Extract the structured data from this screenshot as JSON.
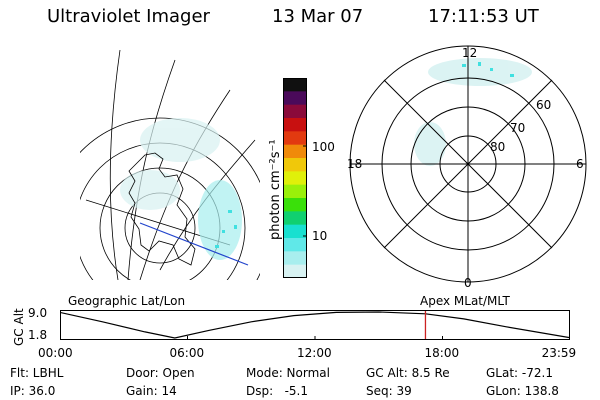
{
  "header": {
    "instrument": "Ultraviolet Imager",
    "date": "13 Mar 07",
    "time": "17:11:53 UT"
  },
  "colorbar": {
    "unit_label": "photon cm⁻²s⁻¹",
    "ticks": [
      "100",
      "10"
    ],
    "colors": [
      "#101010",
      "#4a0a5a",
      "#8a0a3a",
      "#c81010",
      "#e23a10",
      "#f08a0a",
      "#f0c80a",
      "#e0f00a",
      "#9af00a",
      "#3ae00a",
      "#10d070",
      "#18e0d0",
      "#60e8e8",
      "#a8eeee",
      "#d8f2f2"
    ]
  },
  "left_map": {
    "title": "Geographic Lat/Lon"
  },
  "right_map": {
    "title": "Apex MLat/MLT",
    "mlt_labels": {
      "top": "12",
      "left": "18",
      "right": "6",
      "bottom": "0"
    },
    "lat_labels": [
      "60",
      "70",
      "80"
    ]
  },
  "timeline": {
    "ylabel": "GC Alt",
    "yticks": [
      "9.0",
      "1.8"
    ],
    "xticks": [
      "00:00",
      "06:00",
      "12:00",
      "18:00",
      "23:59"
    ],
    "marker_color": "#cc2222"
  },
  "chart_data": {
    "type": "line",
    "title": "",
    "xlabel": "",
    "ylabel": "GC Alt",
    "x_ticks": [
      "00:00",
      "06:00",
      "12:00",
      "18:00",
      "23:59"
    ],
    "ylim": [
      1.8,
      9.0
    ],
    "series": [
      {
        "values_hours": [
          0,
          2,
          4,
          5.4,
          7,
          9,
          11,
          13,
          15,
          17.2,
          19,
          21,
          23.98
        ],
        "values_alt": [
          8.9,
          6.3,
          3.5,
          1.8,
          3.9,
          6.3,
          8.0,
          8.9,
          9.0,
          8.5,
          7.1,
          4.9,
          1.9
        ]
      }
    ],
    "marker_time": "17:11:53"
  },
  "footer": {
    "rows": [
      [
        "Flt: LBHL",
        "Door: Open",
        "Mode: Normal",
        "GC Alt: 8.5 Re",
        "GLat: -72.1"
      ],
      [
        "IP: 36.0",
        "Gain: 14",
        "Dsp:   -5.1",
        "Seq: 39",
        "GLon: 138.8"
      ]
    ]
  }
}
